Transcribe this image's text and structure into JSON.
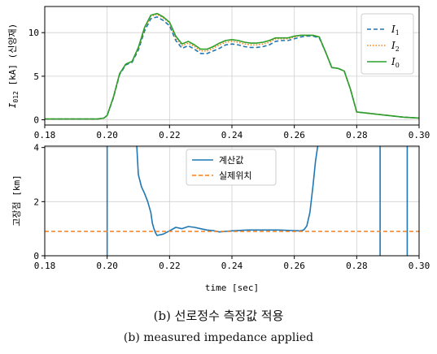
{
  "captions": {
    "korean": "(b) 선로정수 측정값 적용",
    "english": "(b) measured impedance applied"
  },
  "chart_data": [
    {
      "type": "line",
      "title": "",
      "ylabel": {
        "prefix": "I",
        "sub": "012",
        "suffix": " [kA] (신양재)"
      },
      "xlim": [
        0.18,
        0.3
      ],
      "ylim": [
        -0.6,
        13.0
      ],
      "xticks": [
        0.18,
        0.2,
        0.22,
        0.24,
        0.26,
        0.28,
        0.3
      ],
      "xtick_labels": [
        "0.18",
        "0.20",
        "0.22",
        "0.24",
        "0.26",
        "0.28",
        "0.30"
      ],
      "yticks": [
        0,
        5,
        10
      ],
      "ytick_labels": [
        "0",
        "5",
        "10"
      ],
      "grid": true,
      "legend_position": "top-right",
      "series": [
        {
          "name": "1",
          "prefix": "I",
          "sub": "1",
          "color": "#1f77b4",
          "style": "dashed",
          "x": [
            0.18,
            0.197,
            0.199,
            0.2,
            0.202,
            0.204,
            0.206,
            0.208,
            0.21,
            0.212,
            0.214,
            0.216,
            0.218,
            0.22,
            0.222,
            0.224,
            0.226,
            0.228,
            0.23,
            0.232,
            0.234,
            0.236,
            0.238,
            0.24,
            0.242,
            0.244,
            0.246,
            0.248,
            0.25,
            0.252,
            0.254,
            0.256,
            0.258,
            0.26,
            0.262,
            0.264,
            0.266,
            0.268,
            0.27,
            0.272,
            0.274,
            0.276,
            0.278,
            0.28,
            0.285,
            0.29,
            0.295,
            0.3
          ],
          "y": [
            0.1,
            0.1,
            0.2,
            0.5,
            2.5,
            5.2,
            6.3,
            6.6,
            8.0,
            10.2,
            11.6,
            11.8,
            11.4,
            10.8,
            9.1,
            8.2,
            8.5,
            8.1,
            7.6,
            7.6,
            7.9,
            8.2,
            8.6,
            8.7,
            8.6,
            8.4,
            8.3,
            8.3,
            8.4,
            8.6,
            9.0,
            9.1,
            9.1,
            9.3,
            9.5,
            9.6,
            9.6,
            9.4,
            7.8,
            6.0,
            5.9,
            5.6,
            3.5,
            0.9,
            0.7,
            0.5,
            0.3,
            0.2
          ]
        },
        {
          "name": "2",
          "prefix": "I",
          "sub": "2",
          "color": "#ff7f0e",
          "style": "dotted",
          "x": [
            0.18,
            0.197,
            0.199,
            0.2,
            0.202,
            0.204,
            0.206,
            0.208,
            0.21,
            0.212,
            0.214,
            0.216,
            0.218,
            0.22,
            0.222,
            0.224,
            0.226,
            0.228,
            0.23,
            0.232,
            0.234,
            0.236,
            0.238,
            0.24,
            0.242,
            0.244,
            0.246,
            0.248,
            0.25,
            0.252,
            0.254,
            0.256,
            0.258,
            0.26,
            0.262,
            0.264,
            0.266,
            0.268,
            0.27,
            0.272,
            0.274,
            0.276,
            0.278,
            0.28,
            0.285,
            0.29,
            0.295,
            0.3
          ],
          "y": [
            0.1,
            0.1,
            0.2,
            0.5,
            2.6,
            5.3,
            6.4,
            6.7,
            8.2,
            10.5,
            11.9,
            12.1,
            11.7,
            11.1,
            9.4,
            8.5,
            8.8,
            8.4,
            7.9,
            7.9,
            8.2,
            8.6,
            8.9,
            9.0,
            8.9,
            8.7,
            8.6,
            8.6,
            8.7,
            8.9,
            9.3,
            9.3,
            9.3,
            9.5,
            9.7,
            9.7,
            9.7,
            9.5,
            7.8,
            6.0,
            5.9,
            5.6,
            3.5,
            0.9,
            0.7,
            0.5,
            0.3,
            0.2
          ]
        },
        {
          "name": "0",
          "prefix": "I",
          "sub": "0",
          "color": "#2ca02c",
          "style": "solid",
          "x": [
            0.18,
            0.197,
            0.199,
            0.2,
            0.202,
            0.204,
            0.206,
            0.208,
            0.21,
            0.212,
            0.214,
            0.216,
            0.218,
            0.22,
            0.222,
            0.224,
            0.226,
            0.228,
            0.23,
            0.232,
            0.234,
            0.236,
            0.238,
            0.24,
            0.242,
            0.244,
            0.246,
            0.248,
            0.25,
            0.252,
            0.254,
            0.256,
            0.258,
            0.26,
            0.262,
            0.264,
            0.266,
            0.268,
            0.27,
            0.272,
            0.274,
            0.276,
            0.278,
            0.28,
            0.285,
            0.29,
            0.295,
            0.3
          ],
          "y": [
            0.1,
            0.1,
            0.2,
            0.5,
            2.6,
            5.3,
            6.4,
            6.7,
            8.3,
            10.6,
            12.0,
            12.2,
            11.8,
            11.2,
            9.6,
            8.7,
            9.0,
            8.6,
            8.1,
            8.1,
            8.4,
            8.8,
            9.1,
            9.2,
            9.1,
            8.9,
            8.8,
            8.8,
            8.9,
            9.1,
            9.4,
            9.4,
            9.4,
            9.6,
            9.7,
            9.7,
            9.7,
            9.5,
            7.8,
            6.0,
            5.9,
            5.6,
            3.5,
            0.9,
            0.7,
            0.5,
            0.3,
            0.2
          ]
        }
      ]
    },
    {
      "type": "line",
      "title": "",
      "xlabel": "time [sec]",
      "ylabel": "고장점 [km]",
      "xlim": [
        0.18,
        0.3
      ],
      "ylim": [
        0,
        4.05
      ],
      "xticks": [
        0.18,
        0.2,
        0.22,
        0.24,
        0.26,
        0.28,
        0.3
      ],
      "xtick_labels": [
        "0.18",
        "0.20",
        "0.22",
        "0.24",
        "0.26",
        "0.28",
        "0.30"
      ],
      "yticks": [
        0,
        2,
        4
      ],
      "ytick_labels": [
        "0",
        "2",
        "4"
      ],
      "grid": true,
      "legend_position": "top-center",
      "series": [
        {
          "name": "계산값",
          "color": "#1f77b4",
          "style": "solid",
          "segments": [
            {
              "x": [
                0.2,
                0.2
              ],
              "y": [
                0.0,
                4.05
              ]
            },
            {
              "x": [
                0.2095,
                0.21,
                0.211,
                0.212,
                0.213,
                0.214,
                0.2145,
                0.215,
                0.2155,
                0.216,
                0.218,
                0.22,
                0.222,
                0.224,
                0.226,
                0.228,
                0.23,
                0.232,
                0.234,
                0.236,
                0.238,
                0.24,
                0.245,
                0.25,
                0.255,
                0.26,
                0.262,
                0.263,
                0.264,
                0.265,
                0.266,
                0.2668,
                0.2675
              ],
              "y": [
                4.05,
                3.0,
                2.55,
                2.3,
                2.0,
                1.6,
                1.2,
                1.0,
                0.85,
                0.75,
                0.8,
                0.92,
                1.05,
                1.0,
                1.08,
                1.05,
                1.0,
                0.95,
                0.93,
                0.88,
                0.9,
                0.92,
                0.95,
                0.95,
                0.95,
                0.93,
                0.92,
                0.95,
                1.1,
                1.6,
                2.6,
                3.5,
                4.05
              ]
            },
            {
              "x": [
                0.2875,
                0.2875
              ],
              "y": [
                0.0,
                4.05
              ]
            },
            {
              "x": [
                0.2962,
                0.2962
              ],
              "y": [
                0.0,
                4.05
              ]
            }
          ]
        },
        {
          "name": "실제위치",
          "color": "#ff7f0e",
          "style": "dashed",
          "segments": [
            {
              "x": [
                0.18,
                0.3
              ],
              "y": [
                0.9,
                0.9
              ]
            }
          ]
        }
      ]
    }
  ]
}
